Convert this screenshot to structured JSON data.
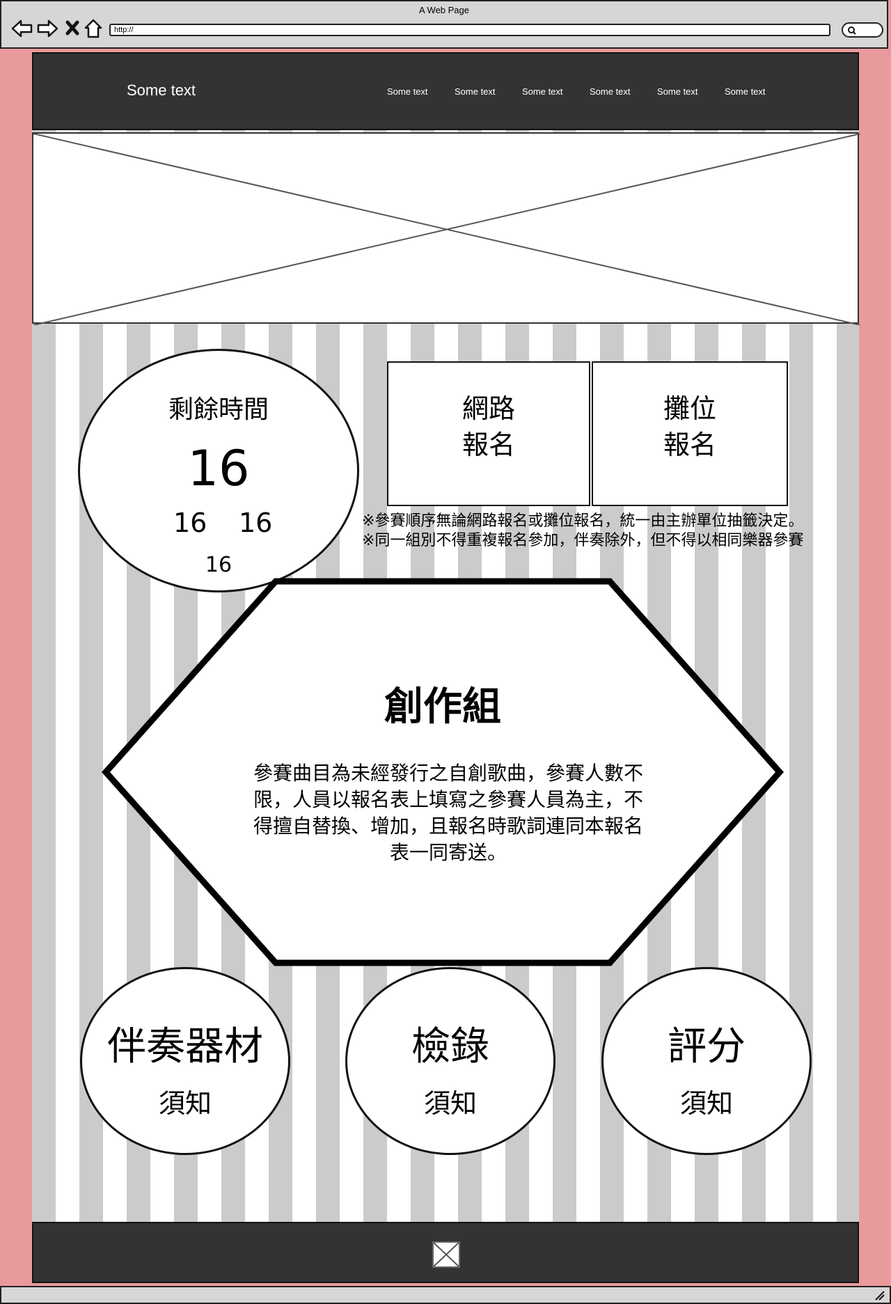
{
  "browser": {
    "title": "A Web Page",
    "url": "http://"
  },
  "header": {
    "brand": "Some text",
    "nav": [
      "Some text",
      "Some text",
      "Some text",
      "Some text",
      "Some text",
      "Some text"
    ]
  },
  "countdown": {
    "title": "剩餘時間",
    "main": "16",
    "value_a": "16",
    "value_b": "16",
    "value_c": "16"
  },
  "registration": {
    "online": {
      "line1": "網路",
      "line2": "報名"
    },
    "booth": {
      "line1": "攤位",
      "line2": "報名"
    },
    "notes": [
      "※參賽順序無論網路報名或攤位報名，統一由主辦單位抽籤決定。",
      "※同一組別不得重複報名參加，伴奏除外，但不得以相同樂器參賽"
    ]
  },
  "category": {
    "title": "創作組",
    "description": "參賽曲目為未經發行之自創歌曲，參賽人數不限，人員以報名表上填寫之參賽人員為主，不得擅自替換、增加，且報名時歌詞連同本報名表一同寄送。"
  },
  "notices": [
    {
      "big": "伴奏器材",
      "small": "須知"
    },
    {
      "big": "檢錄",
      "small": "須知"
    },
    {
      "big": "評分",
      "small": "須知"
    }
  ],
  "colors": {
    "side_background": "#e99a9c",
    "stripe_gray": "#cbcbcb",
    "header_footer": "#333333"
  }
}
